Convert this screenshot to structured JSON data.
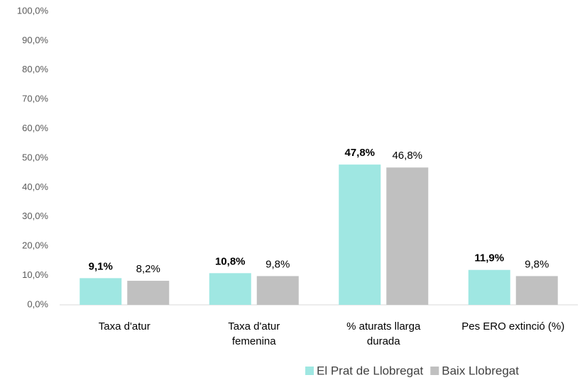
{
  "chart_data": {
    "type": "bar",
    "categories": [
      "Taxa d'atur",
      "Taxa d'atur\nfemenina",
      "% aturats llarga\ndurada",
      "Pes ERO extinció (%)"
    ],
    "series": [
      {
        "name": "El Prat de Llobregat",
        "color": "#9fe7e2",
        "values": [
          9.1,
          10.8,
          47.8,
          11.9
        ],
        "value_labels": [
          "9,1%",
          "10,8%",
          "47,8%",
          "11,9%"
        ]
      },
      {
        "name": "Baix Llobregat",
        "color": "#c0c0c0",
        "values": [
          8.2,
          9.8,
          46.8,
          9.8
        ],
        "value_labels": [
          "8,2%",
          "9,8%",
          "46,8%",
          "9,8%"
        ]
      }
    ],
    "ylim": [
      0,
      100
    ],
    "yticks": [
      {
        "value": 0,
        "label": "0,0%"
      },
      {
        "value": 10,
        "label": "10,0%"
      },
      {
        "value": 20,
        "label": "20,0%"
      },
      {
        "value": 30,
        "label": "30,0%"
      },
      {
        "value": 40,
        "label": "40,0%"
      },
      {
        "value": 50,
        "label": "50,0%"
      },
      {
        "value": 60,
        "label": "60,0%"
      },
      {
        "value": 70,
        "label": "70,0%"
      },
      {
        "value": 80,
        "label": "80,0%"
      },
      {
        "value": 90,
        "label": "90,0%"
      },
      {
        "value": 100,
        "label": "100,0%"
      }
    ],
    "grid": false
  }
}
